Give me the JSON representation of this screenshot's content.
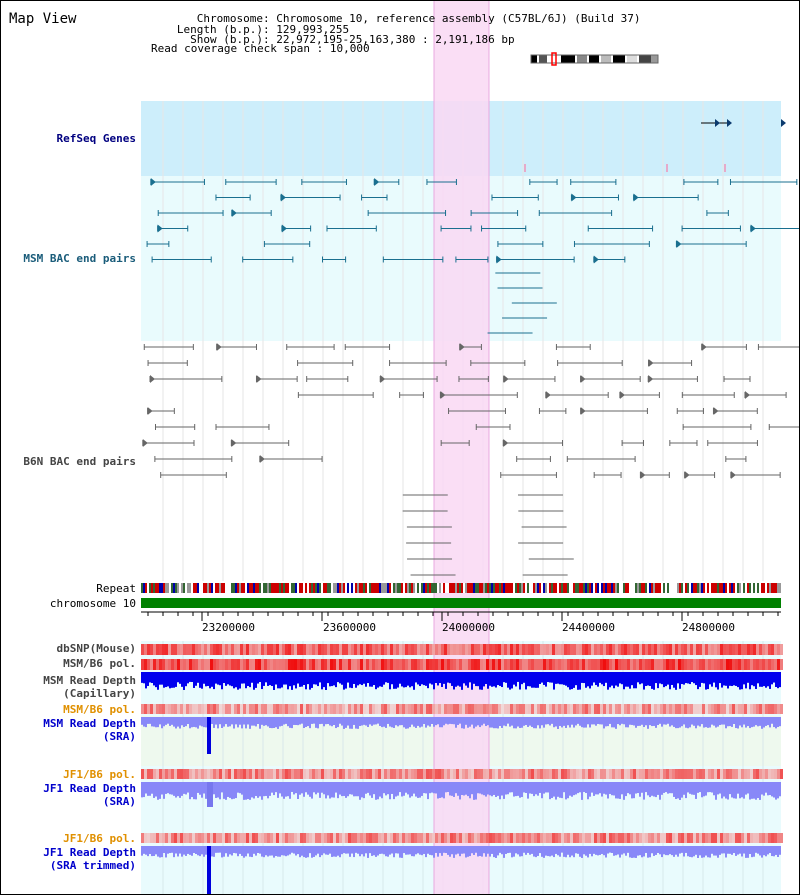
{
  "title": "Map View",
  "info": [
    {
      "label": "Chromosome",
      "value": "Chromosome 10, reference assembly (C57BL/6J) (Build 37)"
    },
    {
      "label": "Length (b.p.)",
      "value": "129,993,255"
    },
    {
      "label": "Show (b.p.)",
      "value": "22,972,195-25,163,380 : 2,191,186 bp"
    },
    {
      "label": "Read coverage check span",
      "value": "10,000"
    }
  ],
  "tracks": {
    "refseq": "RefSeq Genes",
    "msm_bac": "MSM BAC end pairs",
    "b6n_bac": "B6N BAC end pairs",
    "repeat": "Repeat",
    "chromosome": "chromosome 10",
    "dbsnp": "dbSNP(Mouse)",
    "msm_b6_pol_1": "MSM/B6 pol.",
    "msm_read_depth_cap": "MSM Read Depth\n(Capillary)",
    "msm_b6_pol_2": "MSM/B6 pol.",
    "msm_read_depth_sra": "MSM Read Depth\n(SRA)",
    "jf1_b6_pol_1": "JF1/B6 pol.",
    "jf1_read_depth_sra": "JF1 Read Depth\n(SRA)",
    "jf1_b6_pol_2": "JF1/B6 pol.",
    "jf1_read_depth_trim": "JF1 Read Depth\n(SRA trimmed)"
  },
  "axis": {
    "ticks": [
      "23200000",
      "23600000",
      "24000000",
      "24400000",
      "24800000"
    ]
  },
  "highlight_region": "selected region",
  "colors": {
    "highlight": "#f9d8f3",
    "refseq_bg": "#cdeefb",
    "track_bg": "#e9fbfd",
    "gene_dark": "#0b3a6e",
    "gene_mid": "#3a86a8",
    "gene_green": "#0a6a0a",
    "chromosome": "#008000",
    "depth_blue": "#0000ee",
    "depth_light": "#8888f8",
    "snp_red": "#ee3333"
  }
}
